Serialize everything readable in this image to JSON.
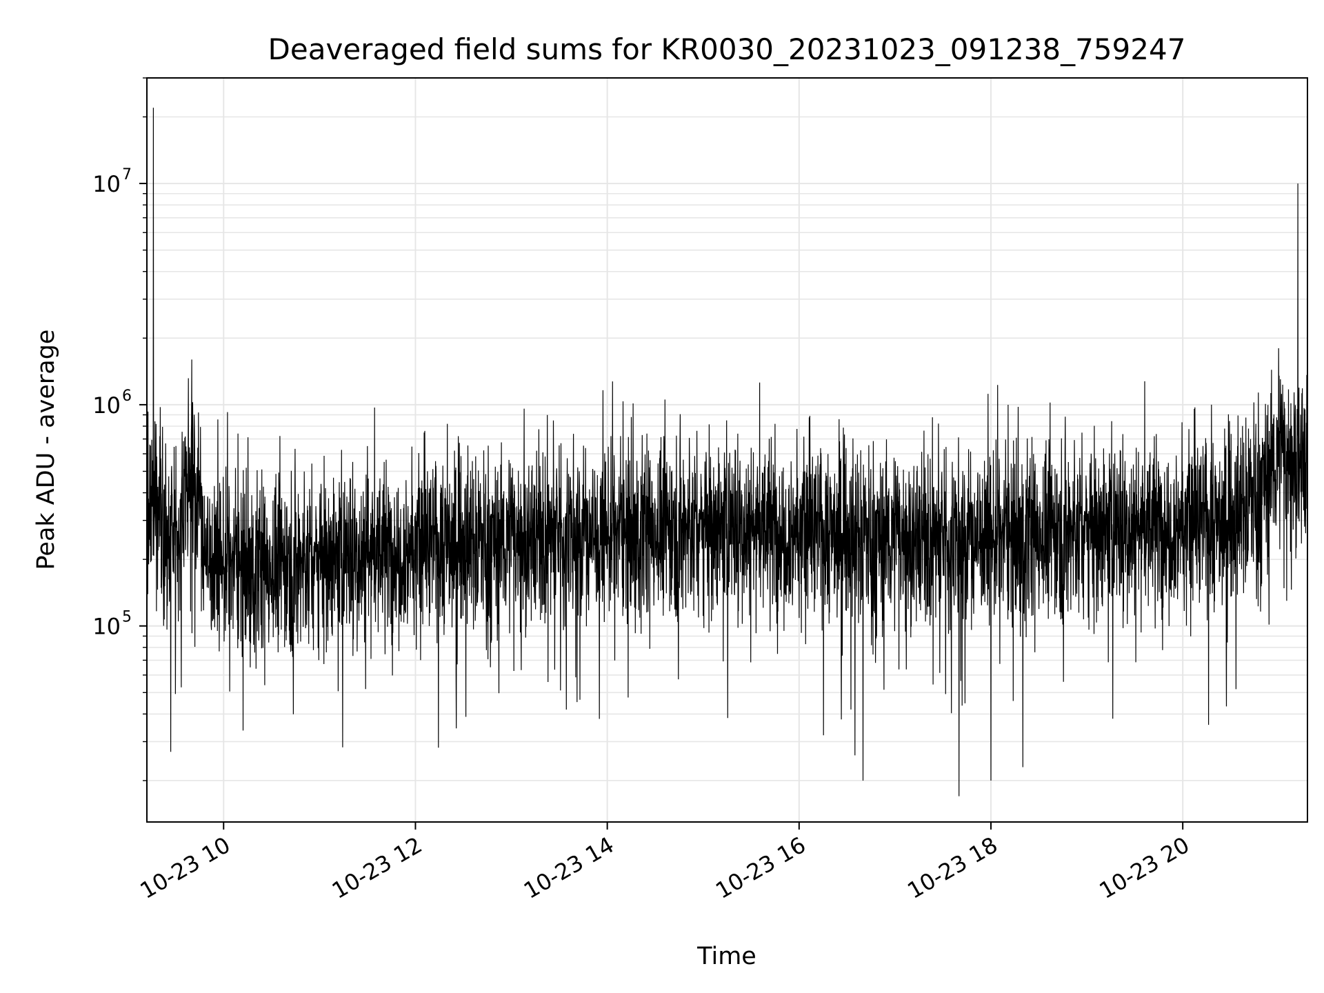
{
  "chart_data": {
    "type": "line",
    "title": "Deaveraged field sums for KR0030_20231023_091238_759247",
    "xlabel": "Time",
    "ylabel": "Peak ADU - average",
    "yscale": "log",
    "grid": true,
    "line_color": "#000000",
    "grid_color": "#e6e6e6",
    "x_range": [
      "2023-10-23 09:12",
      "2023-10-23 21:18"
    ],
    "y_range": [
      13000,
      30000000
    ],
    "x_ticks": [
      {
        "t": "2023-10-23 10:00",
        "label": "10-23 10"
      },
      {
        "t": "2023-10-23 12:00",
        "label": "10-23 12"
      },
      {
        "t": "2023-10-23 14:00",
        "label": "10-23 14"
      },
      {
        "t": "2023-10-23 16:00",
        "label": "10-23 16"
      },
      {
        "t": "2023-10-23 18:00",
        "label": "10-23 18"
      },
      {
        "t": "2023-10-23 20:00",
        "label": "10-23 20"
      }
    ],
    "y_ticks": [
      {
        "value": 100000,
        "base": "10",
        "exp": "5"
      },
      {
        "value": 1000000,
        "base": "10",
        "exp": "6"
      },
      {
        "value": 10000000,
        "base": "10",
        "exp": "7"
      }
    ],
    "series": [
      {
        "baseline_profile": [
          {
            "t": "2023-10-23 09:12",
            "y": 450000
          },
          {
            "t": "2023-10-23 09:20",
            "y": 320000
          },
          {
            "t": "2023-10-23 09:30",
            "y": 250000
          },
          {
            "t": "2023-10-23 09:40",
            "y": 550000
          },
          {
            "t": "2023-10-23 09:45",
            "y": 350000
          },
          {
            "t": "2023-10-23 09:50",
            "y": 200000
          },
          {
            "t": "2023-10-23 10:30",
            "y": 190000
          },
          {
            "t": "2023-10-23 11:30",
            "y": 220000
          },
          {
            "t": "2023-10-23 12:30",
            "y": 240000
          },
          {
            "t": "2023-10-23 13:30",
            "y": 260000
          },
          {
            "t": "2023-10-23 14:30",
            "y": 280000
          },
          {
            "t": "2023-10-23 15:30",
            "y": 290000
          },
          {
            "t": "2023-10-23 16:30",
            "y": 260000
          },
          {
            "t": "2023-10-23 17:30",
            "y": 250000
          },
          {
            "t": "2023-10-23 18:30",
            "y": 270000
          },
          {
            "t": "2023-10-23 19:30",
            "y": 290000
          },
          {
            "t": "2023-10-23 20:30",
            "y": 300000
          },
          {
            "t": "2023-10-23 20:50",
            "y": 450000
          },
          {
            "t": "2023-10-23 21:00",
            "y": 600000
          },
          {
            "t": "2023-10-23 21:18",
            "y": 560000
          }
        ],
        "spikes": [
          {
            "t": "2023-10-23 09:16",
            "y": 22000000
          },
          {
            "t": "2023-10-23 09:40",
            "y": 1600000
          },
          {
            "t": "2023-10-23 11:30",
            "y": 650000
          },
          {
            "t": "2023-10-23 12:20",
            "y": 820000
          },
          {
            "t": "2023-10-23 13:08",
            "y": 960000
          },
          {
            "t": "2023-10-23 14:15",
            "y": 880000
          },
          {
            "t": "2023-10-23 15:45",
            "y": 820000
          },
          {
            "t": "2023-10-23 16:25",
            "y": 860000
          },
          {
            "t": "2023-10-23 20:18",
            "y": 1000000
          },
          {
            "t": "2023-10-23 21:00",
            "y": 1800000
          },
          {
            "t": "2023-10-23 21:12",
            "y": 10000000
          },
          {
            "t": "2023-10-23 09:27",
            "y": 27000
          },
          {
            "t": "2023-10-23 13:55",
            "y": 38000
          },
          {
            "t": "2023-10-23 16:35",
            "y": 26000
          },
          {
            "t": "2023-10-23 16:40",
            "y": 20000
          },
          {
            "t": "2023-10-23 17:40",
            "y": 17000
          },
          {
            "t": "2023-10-23 18:00",
            "y": 20000
          },
          {
            "t": "2023-10-23 18:20",
            "y": 23000
          },
          {
            "t": "2023-10-23 21:05",
            "y": 130000
          }
        ]
      }
    ]
  }
}
